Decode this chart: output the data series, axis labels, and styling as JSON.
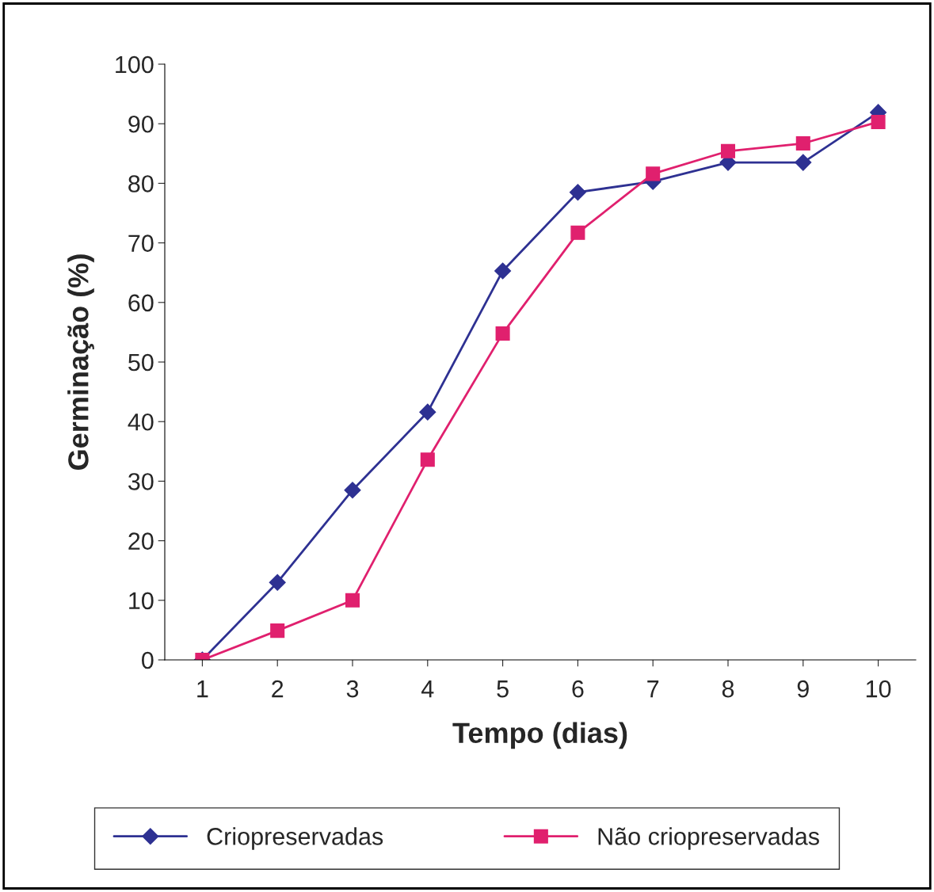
{
  "chart_data": {
    "type": "line",
    "xlabel": "Tempo (dias)",
    "ylabel": "Germinação (%)",
    "categories": [
      "1",
      "2",
      "3",
      "4",
      "5",
      "6",
      "7",
      "8",
      "9",
      "10"
    ],
    "series": [
      {
        "name": "Criopreservadas",
        "color": "#2e3192",
        "marker": "diamond",
        "values": [
          0,
          13,
          28.5,
          41.6,
          65.3,
          78.5,
          80.3,
          83.5,
          83.5,
          91.9
        ]
      },
      {
        "name": "Não criopreservadas",
        "color": "#e0206e",
        "marker": "square",
        "values": [
          0,
          4.9,
          10,
          33.6,
          54.8,
          71.7,
          81.6,
          85.4,
          86.7,
          90.3
        ]
      }
    ],
    "ylim": [
      0,
      100
    ],
    "yticks": [
      0,
      10,
      20,
      30,
      40,
      50,
      60,
      70,
      80,
      90,
      100
    ],
    "grid": false,
    "legend": "bottom",
    "line_style": "solid"
  }
}
